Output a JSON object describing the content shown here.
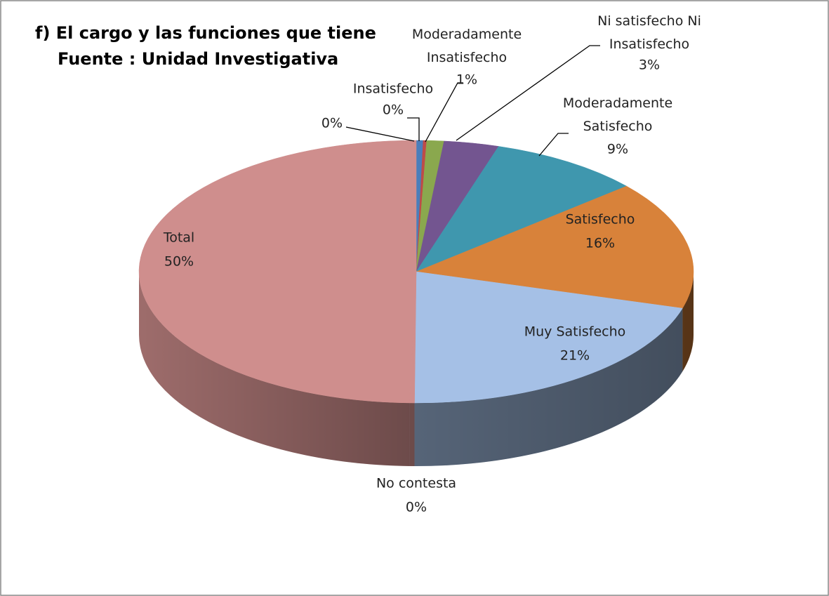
{
  "chart_data": {
    "type": "pie",
    "title": "f) El cargo y las funciones que tiene",
    "subtitle": "Fuente : Unidad Investigativa",
    "categories": [
      null,
      "Insatisfecho",
      "Moderadamente Insatisfecho",
      "Ni satisfecho Ni Insatisfecho",
      "Moderadamente Satisfecho",
      "Satisfecho",
      "Muy Satisfecho",
      "No contesta",
      "Total"
    ],
    "values": [
      0.4,
      0.2,
      1.0,
      3.2,
      8.9,
      15.8,
      20.6,
      0.3,
      49.6
    ],
    "value_labels": [
      "0%",
      "0%",
      "1%",
      "3%",
      "9%",
      "16%",
      "21%",
      "0%",
      "50%"
    ],
    "colors": [
      "#4a7ebb",
      "#be4b48",
      "#8aa84e",
      "#735590",
      "#3f97ae",
      "#d8823a",
      "#a5c0e6",
      "#cf8e8d",
      "#cf8e8d"
    ]
  }
}
